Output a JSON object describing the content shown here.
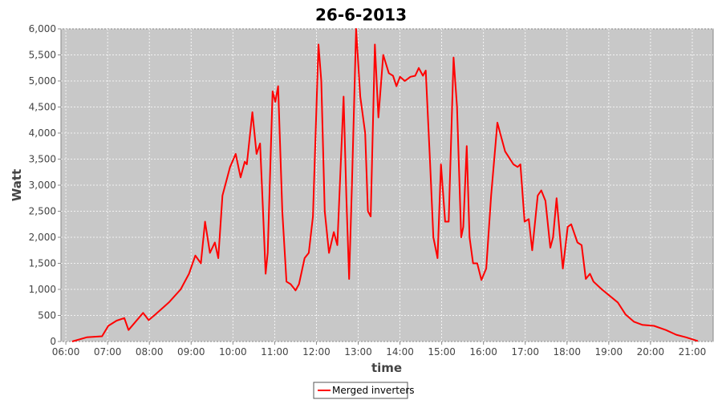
{
  "chart_data": {
    "type": "line",
    "title": "26-6-2013",
    "x_label": "time",
    "y_label": "Watt",
    "x": [
      "06:09",
      "06:30",
      "06:52",
      "07:01",
      "07:13",
      "07:24",
      "07:30",
      "07:51",
      "07:59",
      "08:07",
      "08:28",
      "08:45",
      "08:57",
      "09:06",
      "09:14",
      "09:20",
      "09:27",
      "09:34",
      "09:39",
      "09:45",
      "09:56",
      "10:04",
      "10:11",
      "10:17",
      "10:20",
      "10:28",
      "10:34",
      "10:39",
      "10:43",
      "10:47",
      "10:50",
      "10:57",
      "11:01",
      "11:05",
      "11:11",
      "11:17",
      "11:23",
      "11:30",
      "11:35",
      "11:43",
      "11:49",
      "11:55",
      "12:03",
      "12:07",
      "12:12",
      "12:18",
      "12:25",
      "12:30",
      "12:39",
      "12:43",
      "12:47",
      "12:51",
      "12:57",
      "13:03",
      "13:10",
      "13:14",
      "13:18",
      "13:24",
      "13:29",
      "13:36",
      "13:44",
      "13:50",
      "13:55",
      "14:00",
      "14:07",
      "14:15",
      "14:22",
      "14:27",
      "14:33",
      "14:37",
      "14:43",
      "14:48",
      "14:54",
      "14:59",
      "15:05",
      "15:10",
      "15:17",
      "15:22",
      "15:28",
      "15:31",
      "15:36",
      "15:40",
      "15:45",
      "15:51",
      "15:57",
      "16:04",
      "16:11",
      "16:20",
      "16:26",
      "16:31",
      "16:43",
      "16:49",
      "16:53",
      "16:59",
      "17:05",
      "17:10",
      "17:18",
      "17:23",
      "17:29",
      "17:36",
      "17:40",
      "17:45",
      "17:54",
      "18:01",
      "18:06",
      "18:15",
      "18:21",
      "18:27",
      "18:33",
      "18:38",
      "18:50",
      "19:01",
      "19:13",
      "19:24",
      "19:36",
      "19:48",
      "20:05",
      "20:22",
      "20:37",
      "20:51",
      "21:08"
    ],
    "series": [
      {
        "name": "Merged inverters",
        "color": "#ff0000",
        "values": [
          0,
          80,
          100,
          300,
          400,
          450,
          220,
          550,
          410,
          500,
          750,
          1000,
          1300,
          1650,
          1500,
          2300,
          1700,
          1900,
          1600,
          2800,
          3350,
          3600,
          3150,
          3450,
          3400,
          4400,
          3600,
          3800,
          2600,
          1300,
          1700,
          4800,
          4600,
          4900,
          2500,
          1150,
          1100,
          980,
          1100,
          1600,
          1700,
          2400,
          5700,
          5000,
          2500,
          1700,
          2100,
          1850,
          4700,
          2800,
          1200,
          3000,
          6000,
          4700,
          4000,
          2500,
          2400,
          5700,
          4300,
          5500,
          5150,
          5100,
          4900,
          5080,
          5000,
          5080,
          5100,
          5250,
          5100,
          5200,
          3500,
          2000,
          1600,
          3400,
          2300,
          2300,
          5450,
          4500,
          2000,
          2200,
          3750,
          2000,
          1500,
          1500,
          1180,
          1400,
          2800,
          4200,
          3900,
          3650,
          3400,
          3350,
          3400,
          2300,
          2350,
          1750,
          2800,
          2900,
          2700,
          1800,
          2000,
          2750,
          1400,
          2200,
          2250,
          1900,
          1850,
          1200,
          1300,
          1150,
          1000,
          880,
          750,
          520,
          380,
          320,
          300,
          220,
          130,
          80,
          10
        ]
      }
    ],
    "xlim": [
      "05:53",
      "21:30"
    ],
    "xticks": [
      "06:00",
      "07:00",
      "08:00",
      "09:00",
      "10:00",
      "11:00",
      "12:00",
      "13:00",
      "14:00",
      "15:00",
      "16:00",
      "17:00",
      "18:00",
      "19:00",
      "20:00",
      "21:00"
    ],
    "ylim": [
      0,
      6000
    ],
    "yticks": [
      0,
      500,
      {
        "value": 1000,
        "label": "1,000"
      },
      {
        "value": 1500,
        "label": "1,500"
      },
      {
        "value": 2000,
        "label": "2,000"
      },
      {
        "value": 2500,
        "label": "2,500"
      },
      {
        "value": 3000,
        "label": "3,000"
      },
      {
        "value": 3500,
        "label": "3,500"
      },
      {
        "value": 4000,
        "label": "4,000"
      },
      {
        "value": 4500,
        "label": "4,500"
      },
      {
        "value": 5000,
        "label": "5,000"
      },
      {
        "value": 5500,
        "label": "5,500"
      },
      {
        "value": 6000,
        "label": "6,000"
      }
    ],
    "grid": true
  }
}
